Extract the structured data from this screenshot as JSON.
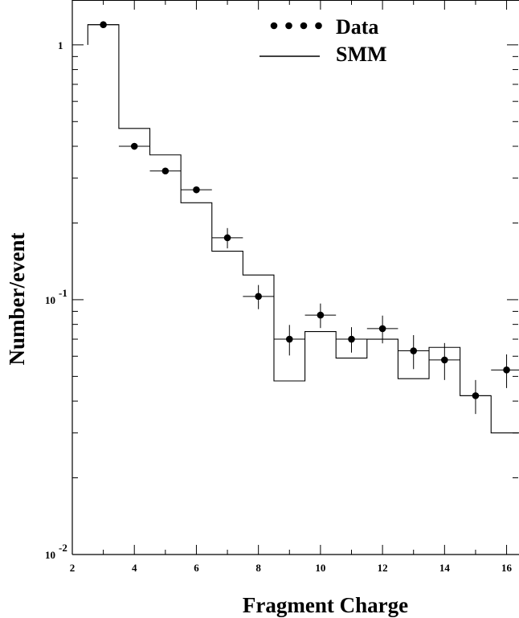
{
  "chart_data": {
    "type": "scatter",
    "xlabel": "Fragment Charge",
    "ylabel": "Number/event",
    "x_axis": {
      "range": [
        2,
        16.4
      ],
      "ticks": [
        2,
        4,
        6,
        8,
        10,
        12,
        14,
        16
      ]
    },
    "y_axis": {
      "scale": "log",
      "range": [
        0.01,
        1.5
      ],
      "tick_labels": [
        {
          "value": 1,
          "base": "1",
          "exp": ""
        },
        {
          "value": 0.1,
          "base": "10",
          "exp": "-1"
        },
        {
          "value": 0.01,
          "base": "10",
          "exp": "-2"
        }
      ]
    },
    "legend": {
      "position": "top-right",
      "entries": [
        "Data",
        "SMM"
      ]
    },
    "series": [
      {
        "name": "Data",
        "style": "points-with-errorbars",
        "points": [
          {
            "x": 3,
            "y": 1.2,
            "xerr": 0.5,
            "yerr": 0.0
          },
          {
            "x": 4,
            "y": 0.4,
            "xerr": 0.5,
            "yerr": 0.0
          },
          {
            "x": 5,
            "y": 0.32,
            "xerr": 0.5,
            "yerr": 0.0
          },
          {
            "x": 6,
            "y": 0.27,
            "xerr": 0.5,
            "yerr": 0.0
          },
          {
            "x": 7,
            "y": 0.175,
            "xerr": 0.5,
            "yerr": 0.01
          },
          {
            "x": 8,
            "y": 0.103,
            "xerr": 0.5,
            "yerr": 0.007
          },
          {
            "x": 9,
            "y": 0.07,
            "xerr": 0.5,
            "yerr": 0.006
          },
          {
            "x": 10,
            "y": 0.087,
            "xerr": 0.5,
            "yerr": 0.006
          },
          {
            "x": 11,
            "y": 0.07,
            "xerr": 0.5,
            "yerr": 0.005
          },
          {
            "x": 12,
            "y": 0.077,
            "xerr": 0.5,
            "yerr": 0.006
          },
          {
            "x": 13,
            "y": 0.063,
            "xerr": 0.5,
            "yerr": 0.006
          },
          {
            "x": 14,
            "y": 0.058,
            "xerr": 0.5,
            "yerr": 0.006
          },
          {
            "x": 15,
            "y": 0.042,
            "xerr": 0.5,
            "yerr": 0.004
          },
          {
            "x": 16,
            "y": 0.053,
            "xerr": 0.5,
            "yerr": 0.005
          }
        ]
      },
      {
        "name": "SMM",
        "style": "step-histogram",
        "bins": [
          {
            "x0": 2.5,
            "x1": 3.5,
            "y": 1.2
          },
          {
            "x0": 3.5,
            "x1": 4.5,
            "y": 0.47
          },
          {
            "x0": 4.5,
            "x1": 5.5,
            "y": 0.37
          },
          {
            "x0": 5.5,
            "x1": 6.5,
            "y": 0.24
          },
          {
            "x0": 6.5,
            "x1": 7.5,
            "y": 0.155
          },
          {
            "x0": 7.5,
            "x1": 8.5,
            "y": 0.125
          },
          {
            "x0": 8.5,
            "x1": 9.5,
            "y": 0.048
          },
          {
            "x0": 9.5,
            "x1": 10.5,
            "y": 0.075
          },
          {
            "x0": 10.5,
            "x1": 11.5,
            "y": 0.059
          },
          {
            "x0": 11.5,
            "x1": 12.5,
            "y": 0.07
          },
          {
            "x0": 12.5,
            "x1": 13.5,
            "y": 0.049
          },
          {
            "x0": 13.5,
            "x1": 14.5,
            "y": 0.065
          },
          {
            "x0": 14.5,
            "x1": 15.5,
            "y": 0.042
          },
          {
            "x0": 15.5,
            "x1": 16.4,
            "y": 0.03
          }
        ]
      }
    ]
  }
}
